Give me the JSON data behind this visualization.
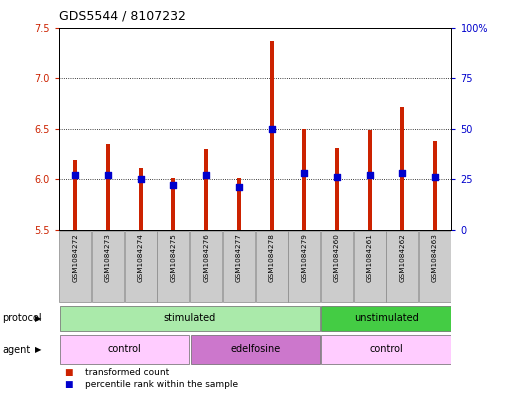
{
  "title": "GDS5544 / 8107232",
  "samples": [
    "GSM1084272",
    "GSM1084273",
    "GSM1084274",
    "GSM1084275",
    "GSM1084276",
    "GSM1084277",
    "GSM1084278",
    "GSM1084279",
    "GSM1084260",
    "GSM1084261",
    "GSM1084262",
    "GSM1084263"
  ],
  "bar_values": [
    6.19,
    6.35,
    6.11,
    6.01,
    6.3,
    6.01,
    7.37,
    6.5,
    6.31,
    6.49,
    6.71,
    6.38
  ],
  "percentile_values": [
    27,
    27,
    25,
    22,
    27,
    21,
    50,
    28,
    26,
    27,
    28,
    26
  ],
  "ylim_left": [
    5.5,
    7.5
  ],
  "ylim_right": [
    0,
    100
  ],
  "yticks_left": [
    5.5,
    6.0,
    6.5,
    7.0,
    7.5
  ],
  "yticks_right": [
    0,
    25,
    50,
    75,
    100
  ],
  "ytick_labels_right": [
    "0",
    "25",
    "50",
    "75",
    "100%"
  ],
  "bar_color": "#cc2200",
  "percentile_color": "#0000cc",
  "bar_bottom": 5.5,
  "protocol_groups": [
    {
      "label": "stimulated",
      "start": 0,
      "end": 8,
      "color": "#aaeaaa"
    },
    {
      "label": "unstimulated",
      "start": 8,
      "end": 12,
      "color": "#44cc44"
    }
  ],
  "agent_groups": [
    {
      "label": "control",
      "start": 0,
      "end": 4,
      "color": "#ffccff"
    },
    {
      "label": "edelfosine",
      "start": 4,
      "end": 8,
      "color": "#cc77cc"
    },
    {
      "label": "control",
      "start": 8,
      "end": 12,
      "color": "#ffccff"
    }
  ],
  "legend_items": [
    {
      "label": "transformed count",
      "color": "#cc2200"
    },
    {
      "label": "percentile rank within the sample",
      "color": "#0000cc"
    }
  ],
  "grid_color": "#000000",
  "bg_color": "#ffffff",
  "label_color_left": "#cc2200",
  "label_color_right": "#0000cc",
  "protocol_label": "protocol",
  "agent_label": "agent",
  "sample_box_color": "#cccccc"
}
